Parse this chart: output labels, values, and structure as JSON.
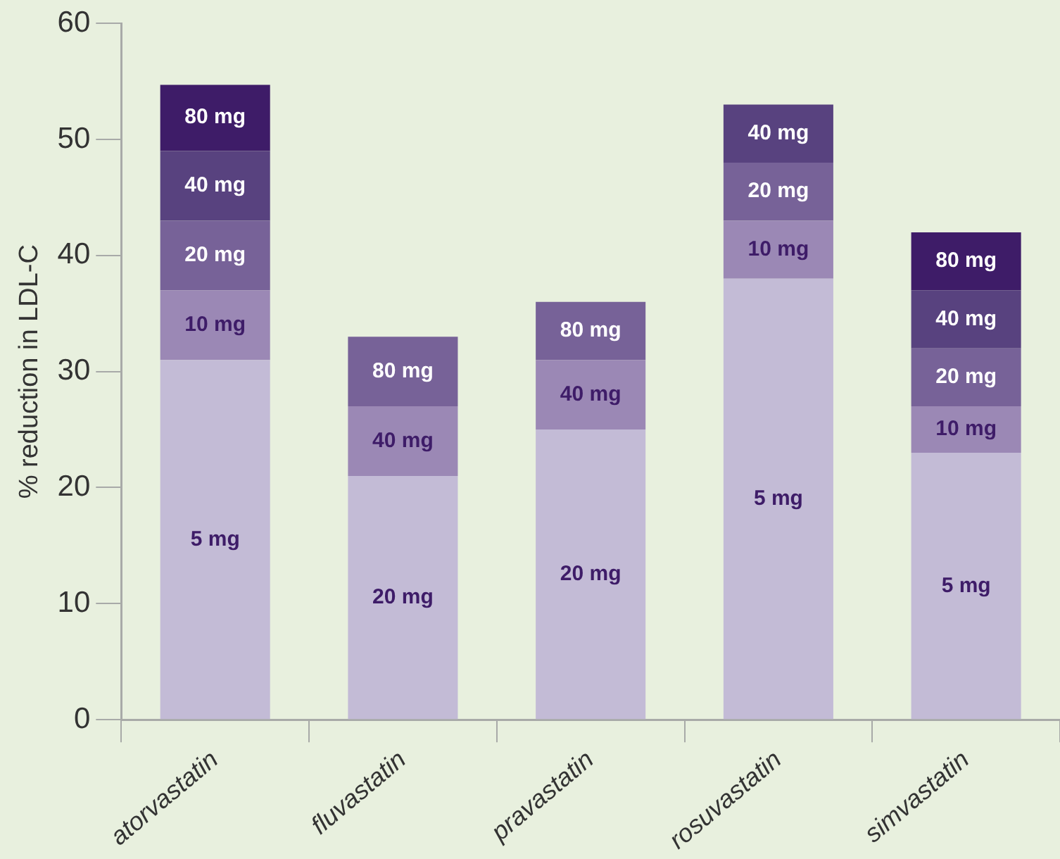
{
  "chart_data": {
    "type": "bar",
    "stacked": true,
    "ylabel": "% reduction in LDL-C",
    "categories": [
      "atorvastatin",
      "fluvastatin",
      "pravastatin",
      "rosuvastatin",
      "simvastatin"
    ],
    "ylim": [
      0,
      60
    ],
    "yticks": [
      0,
      10,
      20,
      30,
      40,
      50,
      60
    ],
    "grid": false,
    "legend": false,
    "series": [
      {
        "color": "#c3bbd6",
        "values": [
          31,
          21,
          25,
          38,
          23
        ]
      },
      {
        "color": "#9b88b5",
        "values": [
          6,
          6,
          6,
          5,
          4
        ]
      },
      {
        "color": "#776298",
        "values": [
          6,
          6,
          5,
          5,
          5
        ]
      },
      {
        "color": "#58427f",
        "values": [
          6,
          null,
          null,
          5,
          5
        ]
      },
      {
        "color": "#3e1c68",
        "values": [
          5.7,
          null,
          null,
          null,
          5
        ]
      }
    ],
    "annotations": [
      {
        "text": "5 mg",
        "x": "atorvastatin",
        "y": 15.5
      },
      {
        "text": "10 mg",
        "x": "atorvastatin",
        "y": 34
      },
      {
        "text": "20 mg",
        "x": "atorvastatin",
        "y": 40
      },
      {
        "text": "40 mg",
        "x": "atorvastatin",
        "y": 46
      },
      {
        "text": "80 mg",
        "x": "atorvastatin",
        "y": 51.9
      },
      {
        "text": "20 mg",
        "x": "fluvastatin",
        "y": 10.5
      },
      {
        "text": "40 mg",
        "x": "fluvastatin",
        "y": 24
      },
      {
        "text": "80 mg",
        "x": "fluvastatin",
        "y": 30
      },
      {
        "text": "20 mg",
        "x": "pravastatin",
        "y": 12.5
      },
      {
        "text": "40 mg",
        "x": "pravastatin",
        "y": 28
      },
      {
        "text": "80 mg",
        "x": "pravastatin",
        "y": 33.5
      },
      {
        "text": "5 mg",
        "x": "rosuvastatin",
        "y": 19
      },
      {
        "text": "10 mg",
        "x": "rosuvastatin",
        "y": 40.5
      },
      {
        "text": "20 mg",
        "x": "rosuvastatin",
        "y": 45.5
      },
      {
        "text": "40 mg",
        "x": "rosuvastatin",
        "y": 50.5
      },
      {
        "text": "5 mg",
        "x": "simvastatin",
        "y": 11.5
      },
      {
        "text": "10 mg",
        "x": "simvastatin",
        "y": 25
      },
      {
        "text": "20 mg",
        "x": "simvastatin",
        "y": 29.5
      },
      {
        "text": "40 mg",
        "x": "simvastatin",
        "y": 34.5
      },
      {
        "text": "80 mg",
        "x": "simvastatin",
        "y": 39.5
      }
    ]
  }
}
